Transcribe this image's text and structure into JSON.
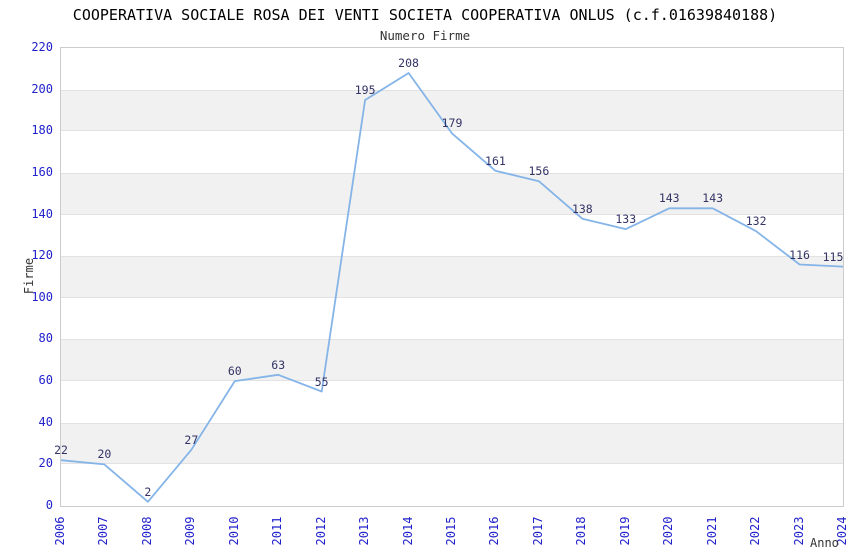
{
  "chart_data": {
    "type": "line",
    "title": "COOPERATIVA SOCIALE ROSA DEI VENTI SOCIETA COOPERATIVA ONLUS (c.f.01639840188)",
    "subtitle": "Numero Firme",
    "xlabel": "Anno",
    "ylabel": "Firme",
    "categories": [
      "2006",
      "2007",
      "2008",
      "2009",
      "2010",
      "2011",
      "2012",
      "2013",
      "2014",
      "2015",
      "2016",
      "2017",
      "2018",
      "2019",
      "2020",
      "2021",
      "2022",
      "2023",
      "2024"
    ],
    "values": [
      22,
      20,
      2,
      27,
      60,
      63,
      55,
      195,
      208,
      179,
      161,
      156,
      138,
      133,
      143,
      143,
      132,
      116,
      115
    ],
    "ylim": [
      0,
      220
    ],
    "ytick_step": 20,
    "grid": "alternating-horizontal-bands",
    "legend_position": "none",
    "point_labels_visible": true,
    "colors": {
      "line": "#85b4e8",
      "tick_label": "#2222cc",
      "point_label": "#333366",
      "band": "#f1f1f1",
      "band_edge": "#e2e2e2",
      "plot_border": "#cccccc",
      "title": "#000000",
      "axis_title": "#333333",
      "background": "#ffffff"
    }
  }
}
